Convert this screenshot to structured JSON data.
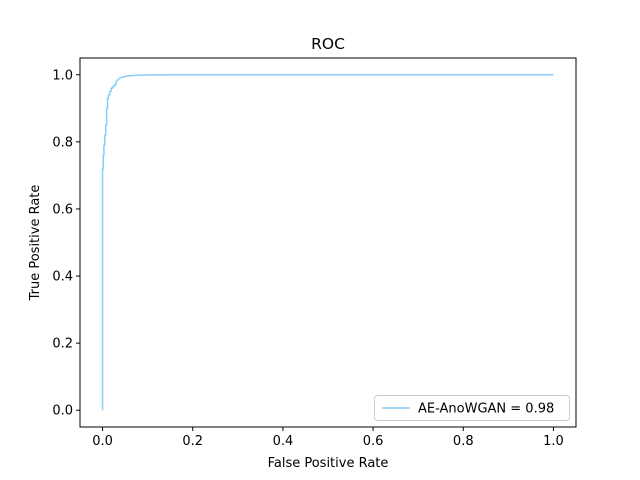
{
  "chart_data": {
    "type": "line",
    "title": "ROC",
    "xlabel": "False Positive Rate",
    "ylabel": "True Positive Rate",
    "xlim": [
      -0.05,
      1.05
    ],
    "ylim": [
      -0.05,
      1.05
    ],
    "xticks": [
      0.0,
      0.2,
      0.4,
      0.6,
      0.8,
      1.0
    ],
    "xtick_labels": [
      "0.0",
      "0.2",
      "0.4",
      "0.6",
      "0.8",
      "1.0"
    ],
    "yticks": [
      0.0,
      0.2,
      0.4,
      0.6,
      0.8,
      1.0
    ],
    "ytick_labels": [
      "0.0",
      "0.2",
      "0.4",
      "0.6",
      "0.8",
      "1.0"
    ],
    "grid": false,
    "legend_position": "lower-right",
    "series": [
      {
        "name": "AE-AnoWGAN = 0.98",
        "color": "#87CEFA",
        "x": [
          0.0,
          0.0,
          0.0,
          0.0015,
          0.0015,
          0.003,
          0.003,
          0.005,
          0.005,
          0.007,
          0.007,
          0.009,
          0.009,
          0.011,
          0.011,
          0.013,
          0.013,
          0.016,
          0.016,
          0.019,
          0.019,
          0.022,
          0.022,
          0.026,
          0.026,
          0.03,
          0.03,
          0.034,
          0.038,
          0.044,
          0.05,
          0.06,
          0.07,
          0.08,
          0.1,
          0.15,
          0.25,
          0.5,
          1.0
        ],
        "y": [
          0.0,
          0.6,
          0.72,
          0.72,
          0.76,
          0.76,
          0.79,
          0.79,
          0.82,
          0.82,
          0.85,
          0.85,
          0.9,
          0.9,
          0.93,
          0.93,
          0.94,
          0.94,
          0.95,
          0.95,
          0.96,
          0.96,
          0.965,
          0.965,
          0.97,
          0.97,
          0.98,
          0.985,
          0.99,
          0.993,
          0.995,
          0.997,
          0.998,
          0.999,
          0.9995,
          1.0,
          1.0,
          1.0,
          1.0
        ]
      }
    ]
  }
}
